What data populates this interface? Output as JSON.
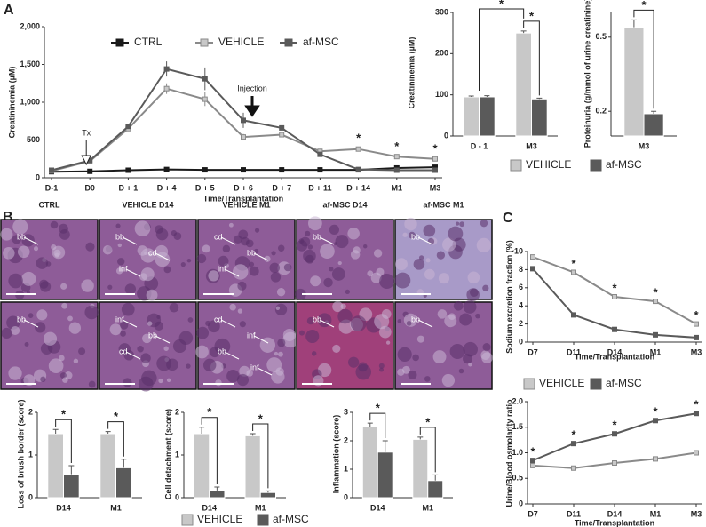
{
  "panel_labels": [
    "A",
    "B",
    "C"
  ],
  "micrographs": {
    "columns": [
      "CTRL",
      "VEHICLE D14",
      "VEHICLE M1",
      "af-MSC D14",
      "af-MSC M1"
    ],
    "labels": [
      [
        [
          "bb"
        ],
        [
          "bb",
          "cd",
          "inf"
        ],
        [
          "cd",
          "bb",
          "inf"
        ],
        [
          "bb"
        ],
        [
          "bb"
        ]
      ],
      [
        [
          "bb"
        ],
        [
          "inf",
          "bb",
          "cd"
        ],
        [
          "cd",
          "inf",
          "bb",
          "inf"
        ],
        [
          "bb"
        ],
        [
          "bb"
        ]
      ]
    ]
  },
  "chart_data": [
    {
      "type": "line",
      "ylabel": "Creatininemia (µM)",
      "xlabel": "Time/Transplantation",
      "categories": [
        "D-1",
        "D0",
        "D + 1",
        "D + 4",
        "D + 5",
        "D + 6",
        "D + 7",
        "D + 11",
        "D + 14",
        "M1",
        "M3"
      ],
      "ylim": [
        0,
        2000
      ],
      "yticks": [
        0,
        500,
        {
          "value": 1000,
          "label": "1,000"
        },
        {
          "value": 1500,
          "label": "1,500"
        },
        {
          "value": 2000,
          "label": "2,000"
        }
      ],
      "series": [
        {
          "name": "CTRL",
          "color": "#1a1a1a",
          "values": [
            80,
            85,
            100,
            110,
            105,
            105,
            105,
            105,
            105,
            130,
            140
          ]
        },
        {
          "name": "VEHICLE",
          "color": "#c8c8c8",
          "values": [
            90,
            220,
            650,
            1180,
            1040,
            540,
            570,
            350,
            380,
            280,
            250
          ],
          "errors": [
            10,
            15,
            30,
            70,
            90,
            40,
            30,
            20,
            30,
            20,
            20
          ]
        },
        {
          "name": "af-MSC",
          "color": "#5a5a5a",
          "values": [
            100,
            230,
            680,
            1440,
            1310,
            760,
            660,
            310,
            110,
            100,
            100
          ],
          "errors": [
            10,
            15,
            30,
            100,
            150,
            100,
            30,
            30,
            10,
            10,
            10
          ]
        }
      ],
      "significance": [
        null,
        null,
        null,
        null,
        null,
        null,
        null,
        null,
        "*",
        "*",
        "*"
      ],
      "annotations": [
        "Tx",
        "Injection"
      ]
    },
    {
      "type": "bar",
      "ylabel": "Creatininemia (µM)",
      "categories": [
        "D - 1",
        "M3"
      ],
      "ylim": [
        0,
        300
      ],
      "yticks": [
        0,
        100,
        200,
        300
      ],
      "series": [
        {
          "name": "VEHICLE",
          "color": "#c8c8c8",
          "values": [
            95,
            250
          ],
          "errors": [
            2,
            5
          ]
        },
        {
          "name": "af-MSC",
          "color": "#5a5a5a",
          "values": [
            95,
            90
          ],
          "errors": [
            3,
            2
          ]
        }
      ],
      "significance": [
        "*",
        "*"
      ]
    },
    {
      "type": "bar",
      "ylabel": "Proteinuria (g/mmol of urine creatinine)",
      "categories": [
        "M3"
      ],
      "ylim": [
        0.1,
        0.6
      ],
      "yticks": [
        0.2,
        0.5
      ],
      "series": [
        {
          "name": "VEHICLE",
          "color": "#c8c8c8",
          "values": [
            0.54
          ],
          "errors": [
            0.03
          ]
        },
        {
          "name": "af-MSC",
          "color": "#5a5a5a",
          "values": [
            0.19
          ],
          "errors": [
            0.01
          ]
        }
      ],
      "significance": [
        "*"
      ]
    },
    {
      "type": "bar",
      "ylabel": "Loss of brush border (score)",
      "categories": [
        "D14",
        "M1"
      ],
      "ylim": [
        0,
        2
      ],
      "yticks": [
        0,
        1,
        2
      ],
      "series": [
        {
          "name": "VEHICLE",
          "color": "#c8c8c8",
          "values": [
            1.5,
            1.5
          ],
          "errors": [
            0.1,
            0.05
          ]
        },
        {
          "name": "af-MSC",
          "color": "#5a5a5a",
          "values": [
            0.55,
            0.7
          ],
          "errors": [
            0.2,
            0.2
          ]
        }
      ],
      "significance": [
        "*",
        "*"
      ]
    },
    {
      "type": "bar",
      "ylabel": "Cell detachment (score)",
      "categories": [
        "D14",
        "M1"
      ],
      "ylim": [
        0,
        2
      ],
      "yticks": [
        0,
        1,
        2
      ],
      "series": [
        {
          "name": "VEHICLE",
          "color": "#c8c8c8",
          "values": [
            1.5,
            1.45
          ],
          "errors": [
            0.15,
            0.05
          ]
        },
        {
          "name": "af-MSC",
          "color": "#5a5a5a",
          "values": [
            0.17,
            0.12
          ],
          "errors": [
            0.08,
            0.04
          ]
        }
      ],
      "significance": [
        "*",
        "*"
      ]
    },
    {
      "type": "bar",
      "ylabel": "Inflammation (score)",
      "categories": [
        "D14",
        "M1"
      ],
      "ylim": [
        0,
        3
      ],
      "yticks": [
        0,
        1,
        2,
        3
      ],
      "series": [
        {
          "name": "VEHICLE",
          "color": "#c8c8c8",
          "values": [
            2.5,
            2.05
          ],
          "errors": [
            0.12,
            0.08
          ]
        },
        {
          "name": "af-MSC",
          "color": "#5a5a5a",
          "values": [
            1.6,
            0.6
          ],
          "errors": [
            0.4,
            0.2
          ]
        }
      ],
      "significance": [
        "*",
        "*"
      ]
    },
    {
      "type": "line",
      "ylabel": "Sodium excretion fraction (%)",
      "xlabel": "Time/Transplantation",
      "categories": [
        "D7",
        "D11",
        "D14",
        "M1",
        "M3"
      ],
      "ylim": [
        0,
        10
      ],
      "yticks": [
        0,
        2,
        4,
        6,
        8,
        10
      ],
      "series": [
        {
          "name": "VEHICLE",
          "color": "#c8c8c8",
          "values": [
            9.4,
            7.7,
            5.0,
            4.5,
            2.0
          ]
        },
        {
          "name": "af-MSC",
          "color": "#5a5a5a",
          "values": [
            8.1,
            3.0,
            1.4,
            0.8,
            0.5
          ]
        }
      ],
      "significance": [
        null,
        "*",
        "*",
        "*",
        "*"
      ]
    },
    {
      "type": "line",
      "ylabel": "Urine/Blood osmolarity ratio",
      "xlabel": "Time/Transplantation",
      "categories": [
        "D7",
        "D11",
        "D14",
        "M1",
        "M3"
      ],
      "ylim": [
        0,
        2
      ],
      "yticks": [
        0,
        0.5,
        {
          "value": 1,
          "label": "1.0"
        },
        1.5,
        {
          "value": 2,
          "label": "2.0"
        }
      ],
      "series": [
        {
          "name": "VEHICLE",
          "color": "#c8c8c8",
          "values": [
            0.75,
            0.7,
            0.8,
            0.88,
            1.0
          ]
        },
        {
          "name": "af-MSC",
          "color": "#5a5a5a",
          "values": [
            0.85,
            1.18,
            1.37,
            1.63,
            1.77
          ]
        }
      ],
      "significance": [
        "*",
        "*",
        "*",
        "*",
        "*"
      ]
    }
  ]
}
